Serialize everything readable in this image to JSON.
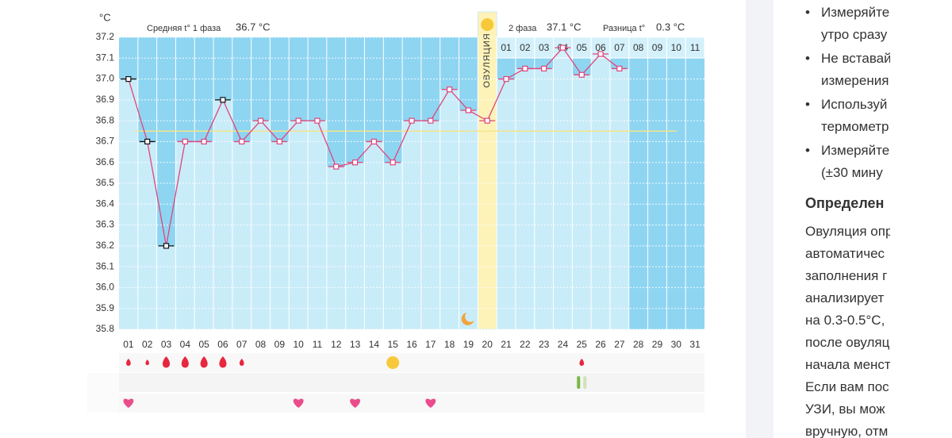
{
  "chart_data": {
    "type": "line",
    "y_unit": "°C",
    "phase1_label": "Средняя t° 1 фаза",
    "phase1_avg": "36.7 °C",
    "phase2_label": "2 фаза",
    "phase2_avg": "37.1 °C",
    "diff_label": "Разница t°",
    "diff_value": "0.3 °C",
    "ovulation_label": "ОВУЛЯЦИЯ",
    "categories": [
      "01",
      "02",
      "03",
      "04",
      "05",
      "06",
      "07",
      "08",
      "09",
      "10",
      "11",
      "12",
      "13",
      "14",
      "15",
      "16",
      "17",
      "18",
      "19",
      "20",
      "21",
      "22",
      "23",
      "24",
      "25",
      "26",
      "27",
      "28",
      "29",
      "30",
      "31"
    ],
    "phase2_day_labels": [
      "01",
      "02",
      "03",
      "04",
      "05",
      "06",
      "07",
      "08",
      "09",
      "10",
      "11"
    ],
    "series": [
      {
        "name": "t°",
        "color": "#e0457b",
        "values": [
          37.0,
          36.7,
          36.2,
          36.7,
          36.7,
          36.9,
          36.7,
          36.8,
          36.7,
          36.8,
          36.8,
          36.58,
          36.6,
          36.7,
          36.6,
          36.8,
          36.8,
          36.95,
          36.85,
          36.8,
          37.0,
          37.05,
          37.05,
          37.15,
          37.02,
          37.12,
          37.05,
          null,
          null,
          null,
          null
        ],
        "marker_colors": [
          "#111",
          "#111",
          "#111",
          "#e0457b",
          "#e0457b",
          "#111",
          "#e0457b",
          "#e0457b",
          "#e0457b",
          "#e0457b",
          "#e0457b",
          "#e0457b",
          "#e0457b",
          "#e0457b",
          "#e0457b",
          "#e0457b",
          "#e0457b",
          "#e0457b",
          "#e0457b",
          "#e0457b",
          "#e0457b",
          "#e0457b",
          "#e0457b",
          "#e0457b",
          "#e0457b",
          "#e0457b",
          "#e0457b",
          null,
          null,
          null,
          null
        ]
      }
    ],
    "coverline": 36.75,
    "coverline_color": "#f3e58a",
    "ylim": [
      35.8,
      37.2
    ],
    "yticks": [
      35.8,
      35.9,
      {
        "value": 36.0,
        "label": "36.0"
      },
      36.1,
      36.2,
      36.3,
      36.4,
      36.5,
      36.6,
      36.7,
      36.8,
      36.9,
      {
        "value": 37.0,
        "label": "37.0"
      },
      37.1,
      37.2
    ],
    "grid": true
  },
  "panel": {
    "bullets": [
      [
        "Измеряйте",
        "утро сразу"
      ],
      [
        "Не вставай",
        "измерения"
      ],
      [
        "Используй",
        "термометр"
      ],
      [
        "Измеряйте",
        "(±30 мину"
      ]
    ],
    "heading": "Определен",
    "paragraph": [
      "Овуляция опр",
      "автоматичес",
      "заполнения г",
      "анализирует",
      "на 0.3-0.5°C,",
      "после овуляц",
      "начала менст",
      "Если вам пос",
      "УЗИ, вы мож",
      "вручную, отм"
    ]
  }
}
